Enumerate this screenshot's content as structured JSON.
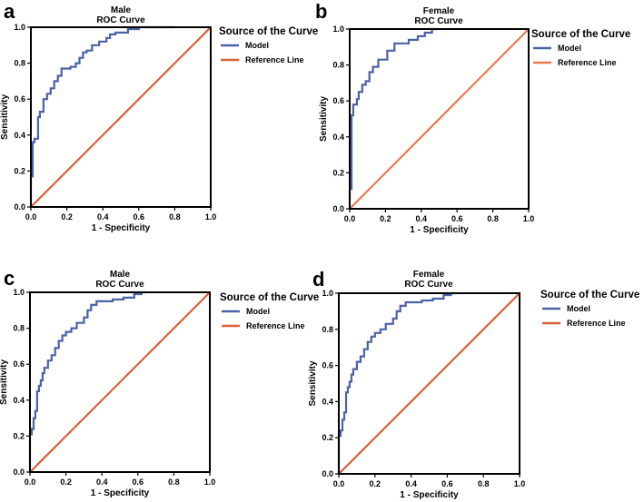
{
  "figure": {
    "panels": [
      {
        "letter": "a",
        "title_line1": "Male",
        "title_line2": "ROC Curve",
        "xlabel": "1 - Specificity",
        "ylabel": "Sensitivity"
      },
      {
        "letter": "b",
        "title_line1": "Female",
        "title_line2": "ROC Curve",
        "xlabel": "1 - Specificity",
        "ylabel": "Sensitivity"
      },
      {
        "letter": "c",
        "title_line1": "Male",
        "title_line2": "ROC Curve",
        "xlabel": "1 - Specificity",
        "ylabel": "Sensitivity"
      },
      {
        "letter": "d",
        "title_line1": "Female",
        "title_line2": "ROC Curve",
        "xlabel": "1 - Specificity",
        "ylabel": "Sensitivity"
      }
    ],
    "legend": {
      "title": "Source of the Curve",
      "model_label": "Model",
      "reference_label": "Reference Line"
    },
    "colors": {
      "model": "#4a62a8",
      "reference": "#d9603b",
      "reference_b": "#e8794f",
      "axes": "#000000"
    }
  },
  "chart_data": [
    {
      "type": "line",
      "title": "Male ROC Curve",
      "xlabel": "1 - Specificity",
      "ylabel": "Sensitivity",
      "xlim": [
        0,
        1
      ],
      "ylim": [
        0,
        1
      ],
      "xticks": [
        "0.0",
        "0.2",
        "0.4",
        "0.6",
        "0.8",
        "1.0"
      ],
      "yticks": [
        "0.0",
        "0.2",
        "0.4",
        "0.6",
        "0.8",
        "1.0"
      ],
      "legend_title": "Source of the Curve",
      "series": [
        {
          "name": "Model",
          "color": "#4a62a8",
          "x": [
            0,
            0,
            0.01,
            0.01,
            0.02,
            0.02,
            0.04,
            0.04,
            0.05,
            0.05,
            0.07,
            0.07,
            0.09,
            0.09,
            0.11,
            0.11,
            0.13,
            0.13,
            0.15,
            0.15,
            0.17,
            0.17,
            0.22,
            0.22,
            0.25,
            0.25,
            0.27,
            0.27,
            0.29,
            0.29,
            0.31,
            0.31,
            0.34,
            0.34,
            0.38,
            0.38,
            0.42,
            0.42,
            0.44,
            0.44,
            0.47,
            0.47,
            0.54,
            0.54,
            0.6,
            0.6,
            0.8
          ],
          "y": [
            0,
            0.17,
            0.17,
            0.36,
            0.36,
            0.38,
            0.38,
            0.5,
            0.5,
            0.53,
            0.53,
            0.6,
            0.6,
            0.63,
            0.63,
            0.66,
            0.66,
            0.7,
            0.7,
            0.73,
            0.73,
            0.77,
            0.77,
            0.78,
            0.78,
            0.8,
            0.8,
            0.83,
            0.83,
            0.86,
            0.86,
            0.87,
            0.87,
            0.9,
            0.9,
            0.92,
            0.92,
            0.94,
            0.94,
            0.96,
            0.96,
            0.97,
            0.97,
            0.99,
            0.99,
            1.0,
            1.0
          ]
        },
        {
          "name": "Reference Line",
          "color": "#d9603b",
          "x": [
            0,
            1
          ],
          "y": [
            0,
            1
          ]
        }
      ]
    },
    {
      "type": "line",
      "title": "Female ROC Curve",
      "xlabel": "1 - Specificity",
      "ylabel": "Sensitivity",
      "xlim": [
        0,
        1
      ],
      "ylim": [
        0,
        1
      ],
      "xticks": [
        "0.0",
        "0.2",
        "0.4",
        "0.6",
        "0.8",
        "1.0"
      ],
      "yticks": [
        "0.0",
        "0.2",
        "0.4",
        "0.6",
        "0.8",
        "1.0"
      ],
      "legend_title": "Source of the Curve",
      "series": [
        {
          "name": "Model",
          "color": "#4a62a8",
          "x": [
            0,
            0,
            0.01,
            0.01,
            0.02,
            0.02,
            0.04,
            0.04,
            0.05,
            0.05,
            0.07,
            0.07,
            0.09,
            0.09,
            0.11,
            0.11,
            0.13,
            0.13,
            0.16,
            0.16,
            0.21,
            0.21,
            0.25,
            0.25,
            0.33,
            0.33,
            0.38,
            0.38,
            0.42,
            0.42,
            0.46,
            0.46,
            0.49
          ],
          "y": [
            0,
            0.11,
            0.11,
            0.52,
            0.52,
            0.58,
            0.58,
            0.61,
            0.61,
            0.65,
            0.65,
            0.69,
            0.69,
            0.71,
            0.71,
            0.76,
            0.76,
            0.79,
            0.79,
            0.83,
            0.83,
            0.88,
            0.88,
            0.92,
            0.92,
            0.94,
            0.94,
            0.96,
            0.96,
            0.98,
            0.98,
            1.0,
            1.0
          ]
        },
        {
          "name": "Reference Line",
          "color": "#e8794f",
          "x": [
            0,
            1
          ],
          "y": [
            0,
            1
          ]
        }
      ]
    },
    {
      "type": "line",
      "title": "Male ROC Curve",
      "xlabel": "1 - Specificity",
      "ylabel": "Sensitivity",
      "xlim": [
        0,
        1
      ],
      "ylim": [
        0,
        1
      ],
      "xticks": [
        "0.0",
        "0.2",
        "0.4",
        "0.6",
        "0.8",
        "1.0"
      ],
      "yticks": [
        "0.0",
        "0.2",
        "0.4",
        "0.6",
        "0.8",
        "1.0"
      ],
      "legend_title": "Source of the Curve",
      "series": [
        {
          "name": "Model",
          "color": "#4a62a8",
          "x": [
            0,
            0,
            0.01,
            0.01,
            0.02,
            0.02,
            0.03,
            0.03,
            0.04,
            0.04,
            0.05,
            0.05,
            0.06,
            0.06,
            0.07,
            0.07,
            0.08,
            0.08,
            0.1,
            0.1,
            0.12,
            0.12,
            0.14,
            0.14,
            0.16,
            0.16,
            0.18,
            0.18,
            0.2,
            0.2,
            0.23,
            0.23,
            0.26,
            0.26,
            0.3,
            0.3,
            0.32,
            0.32,
            0.34,
            0.34,
            0.37,
            0.37,
            0.46,
            0.46,
            0.52,
            0.52,
            0.58,
            0.58,
            0.62,
            0.62,
            0.65
          ],
          "y": [
            0,
            0.21,
            0.21,
            0.24,
            0.24,
            0.3,
            0.3,
            0.34,
            0.34,
            0.45,
            0.45,
            0.48,
            0.48,
            0.51,
            0.51,
            0.55,
            0.55,
            0.58,
            0.58,
            0.62,
            0.62,
            0.65,
            0.65,
            0.69,
            0.69,
            0.73,
            0.73,
            0.76,
            0.76,
            0.78,
            0.78,
            0.8,
            0.8,
            0.83,
            0.83,
            0.86,
            0.86,
            0.9,
            0.9,
            0.93,
            0.93,
            0.95,
            0.95,
            0.96,
            0.96,
            0.97,
            0.97,
            0.99,
            0.99,
            1.0,
            1.0
          ]
        },
        {
          "name": "Reference Line",
          "color": "#d9603b",
          "x": [
            0,
            1
          ],
          "y": [
            0,
            1
          ]
        }
      ]
    },
    {
      "type": "line",
      "title": "Female ROC Curve",
      "xlabel": "1 - Specificity",
      "ylabel": "Sensitivity",
      "xlim": [
        0,
        1
      ],
      "ylim": [
        0,
        1
      ],
      "xticks": [
        "0.0",
        "0.2",
        "0.4",
        "0.6",
        "0.8",
        "1.0"
      ],
      "yticks": [
        "0.0",
        "0.2",
        "0.4",
        "0.6",
        "0.8",
        "1.0"
      ],
      "legend_title": "Source of the Curve",
      "series": [
        {
          "name": "Model",
          "color": "#4a62a8",
          "x": [
            0,
            0,
            0.01,
            0.01,
            0.02,
            0.02,
            0.03,
            0.03,
            0.04,
            0.04,
            0.05,
            0.05,
            0.06,
            0.06,
            0.07,
            0.07,
            0.08,
            0.08,
            0.1,
            0.1,
            0.12,
            0.12,
            0.14,
            0.14,
            0.16,
            0.16,
            0.18,
            0.18,
            0.2,
            0.2,
            0.23,
            0.23,
            0.26,
            0.26,
            0.3,
            0.3,
            0.32,
            0.32,
            0.34,
            0.34,
            0.37,
            0.37,
            0.46,
            0.46,
            0.52,
            0.52,
            0.58,
            0.58,
            0.62,
            0.62,
            0.65
          ],
          "y": [
            0,
            0.21,
            0.21,
            0.24,
            0.24,
            0.3,
            0.3,
            0.34,
            0.34,
            0.45,
            0.45,
            0.48,
            0.48,
            0.51,
            0.51,
            0.55,
            0.55,
            0.58,
            0.58,
            0.62,
            0.62,
            0.65,
            0.65,
            0.69,
            0.69,
            0.73,
            0.73,
            0.76,
            0.76,
            0.78,
            0.78,
            0.8,
            0.8,
            0.83,
            0.83,
            0.86,
            0.86,
            0.9,
            0.9,
            0.93,
            0.93,
            0.95,
            0.95,
            0.96,
            0.96,
            0.97,
            0.97,
            0.99,
            0.99,
            1.0,
            1.0
          ]
        },
        {
          "name": "Reference Line",
          "color": "#d9603b",
          "x": [
            0,
            1
          ],
          "y": [
            0,
            1
          ]
        }
      ]
    }
  ]
}
